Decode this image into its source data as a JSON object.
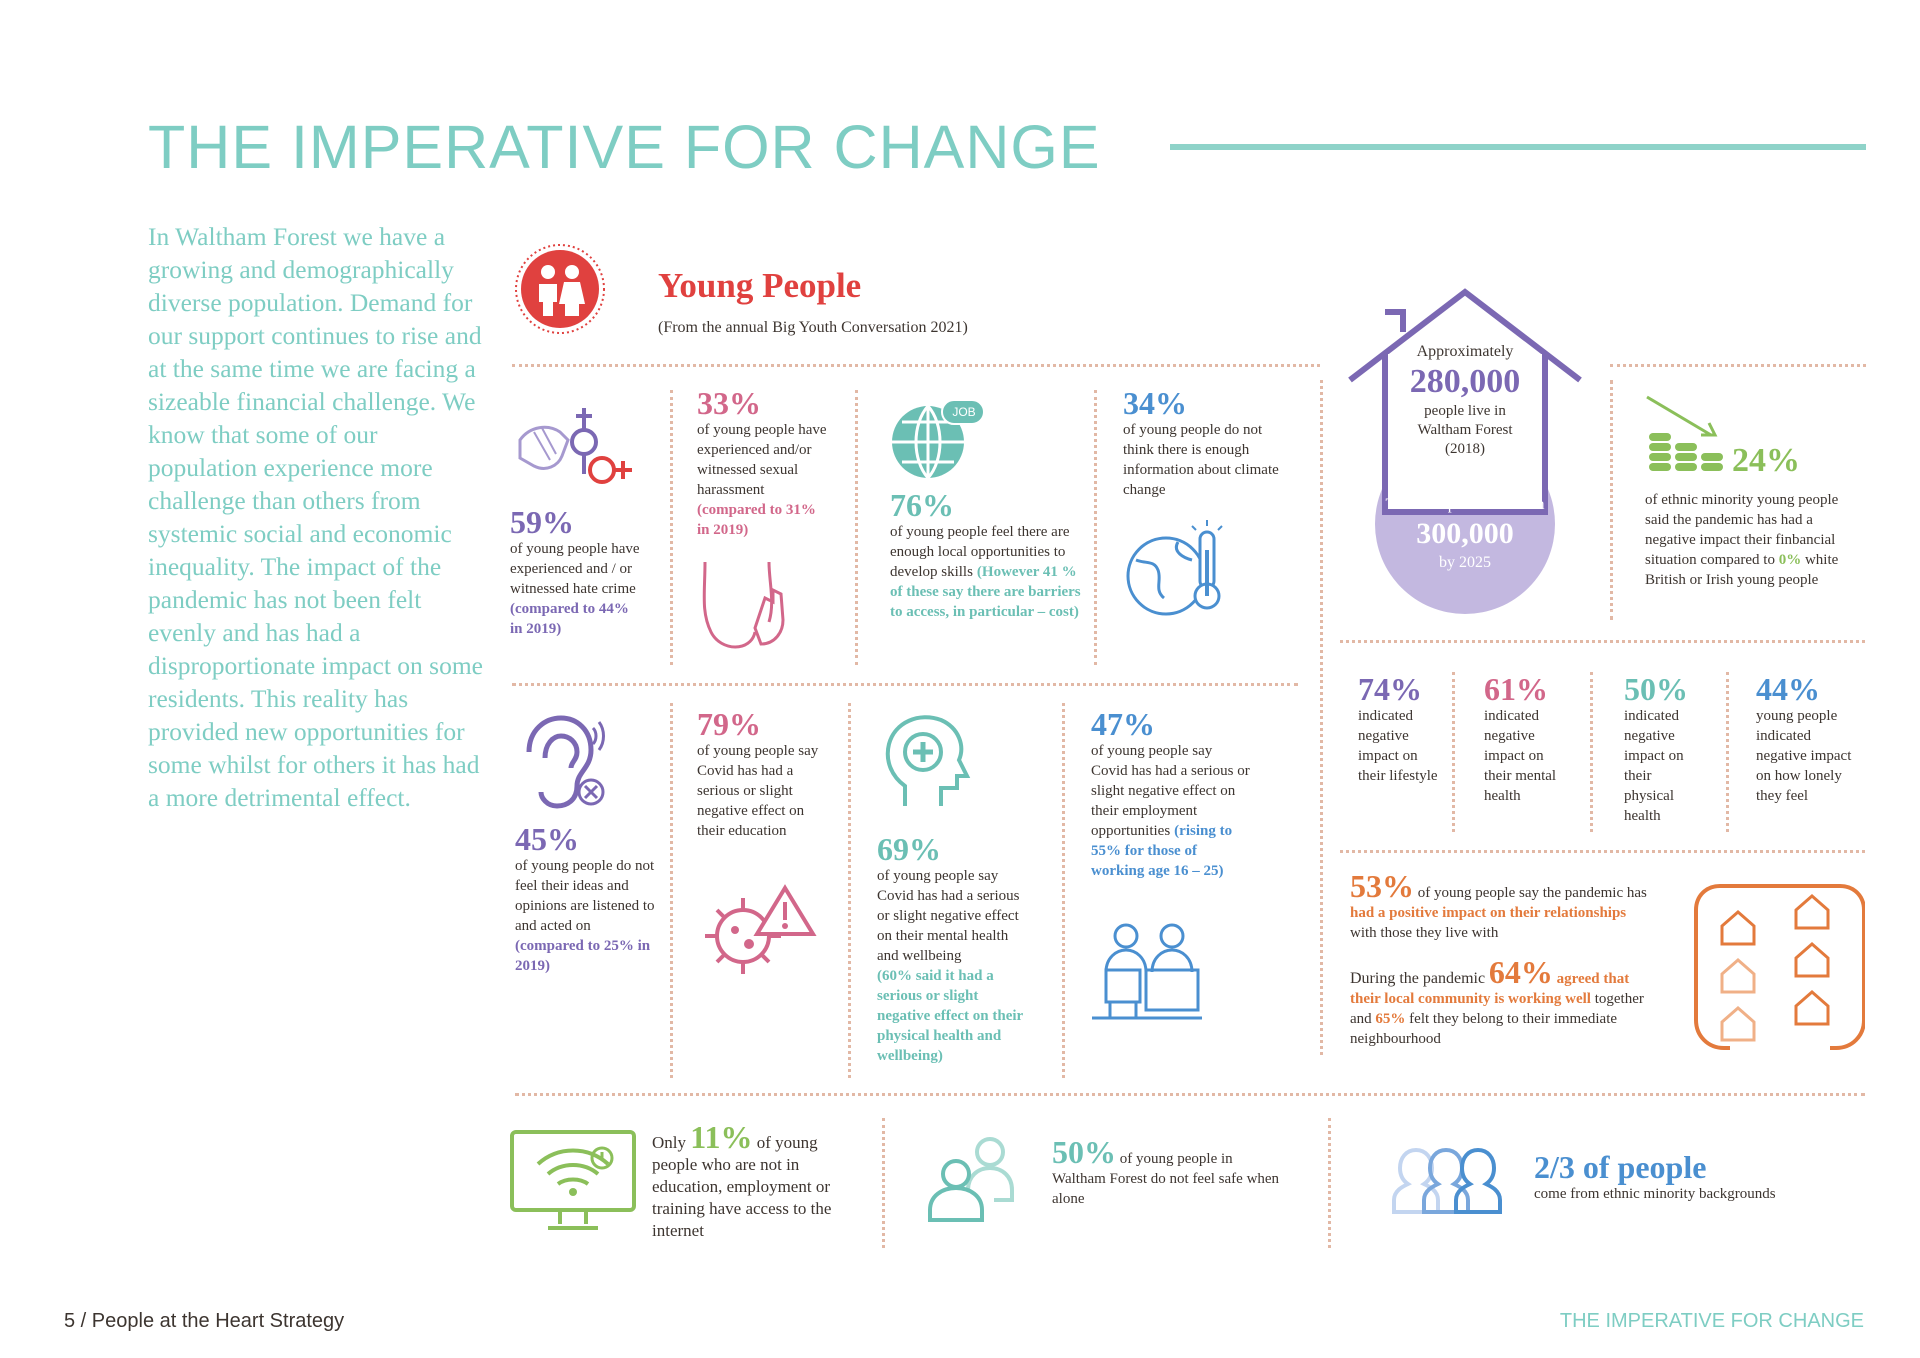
{
  "header": {
    "title": "THE IMPERATIVE FOR CHANGE"
  },
  "intro": {
    "text": "In Waltham Forest we have a growing and demographically diverse population. Demand for our support continues to rise and at the same time we are facing a sizeable financial challenge. We know that some of our population experience more challenge than others from systemic social and economic inequality. The impact of the pandemic has not been felt evenly and has had a disproportionate impact on some residents. This reality has provided new opportunities for some whilst for others it has had a more detrimental effect."
  },
  "young": {
    "title": "Young People",
    "subtitle": "(From the annual Big Youth Conversation 2021)"
  },
  "stats": {
    "hate": {
      "pct": "59%",
      "text": "of young people have experienced and / or witnessed hate crime",
      "note": "(compared to 44% in 2019)"
    },
    "harass": {
      "pct": "33%",
      "text": "of young people have experienced and/or witnessed sexual harassment",
      "note": "(compared to 31% in 2019)"
    },
    "jobs": {
      "pct": "76%",
      "text": "of young people feel there are enough local opportunities to develop skills",
      "note": "(However 41 % of these say there are barriers to access, in particular – cost)",
      "badge": "JOB"
    },
    "climate": {
      "pct": "34%",
      "text": "of young people do not think there is enough information about climate change"
    },
    "heard": {
      "pct": "45%",
      "text": "of young people do not feel their ideas and opinions are listened to and acted on",
      "note": "(compared to 25% in 2019)"
    },
    "education": {
      "pct": "79%",
      "text": "of young people say Covid has had a serious or slight negative effect on their education"
    },
    "mental": {
      "pct": "69%",
      "text": "of young people say Covid has had a serious or slight negative effect on their mental health and wellbeing",
      "note": "(60% said it had a serious or slight negative effect on their physical health and wellbeing)"
    },
    "employ": {
      "pct": "47%",
      "text": "of young people say Covid has had a serious or slight negative effect on their employment opportunities",
      "note": "(rising to 55% for those of working age 16 – 25)"
    },
    "internet": {
      "pre": "Only",
      "pct": "11%",
      "text1": "of young",
      "text2": "people who are not in education, employment or training have access to the internet"
    },
    "safe": {
      "pct": "50%",
      "text1": "of young people in",
      "text2": "Waltham Forest do not feel safe when alone"
    },
    "ethnic": {
      "pct": "2/3 of people",
      "text": "come from ethnic minority backgrounds"
    }
  },
  "population": {
    "approx": "Approximately",
    "num": "280,000",
    "text": "people live in Waltham Forest (2018)",
    "expect": "This is expected to reach",
    "future": "300,000",
    "by": "by 2025"
  },
  "financial": {
    "pct": "24%",
    "text1": "of ethnic minority young people said the pandemic has had a negative impact their finbancial situation compared to",
    "zero": "0%",
    "text2": "white British or Irish young people"
  },
  "impacts": [
    {
      "pct": "74%",
      "text": "indicated negative impact on their lifestyle"
    },
    {
      "pct": "61%",
      "text": "indicated negative impact on their mental health"
    },
    {
      "pct": "50%",
      "text": "indicated negative impact on their physical health"
    },
    {
      "pct": "44%",
      "text": "young people indicated negative impact on how lonely they feel"
    }
  ],
  "relations": {
    "pct": "53%",
    "t1": "of young people say the pandemic has",
    "t2": "had a positive impact on their relationships",
    "t3": "with those they live with",
    "c1": "During the pandemic",
    "pct2": "64%",
    "c2": "agreed that their local community is working well",
    "c3": "together and",
    "c4": "65%",
    "c5": "felt they belong to their immediate neighbourhood"
  },
  "colors": {
    "teal": "#7ecdc3",
    "purple": "#7b68b3",
    "pink": "#d2678a",
    "red": "#e0413f",
    "blue": "#4a8fd0",
    "green": "#8bbf5a",
    "orange": "#e37a3c"
  },
  "footer": {
    "left": "5 / People at the Heart Strategy",
    "right": "THE IMPERATIVE FOR CHANGE"
  }
}
